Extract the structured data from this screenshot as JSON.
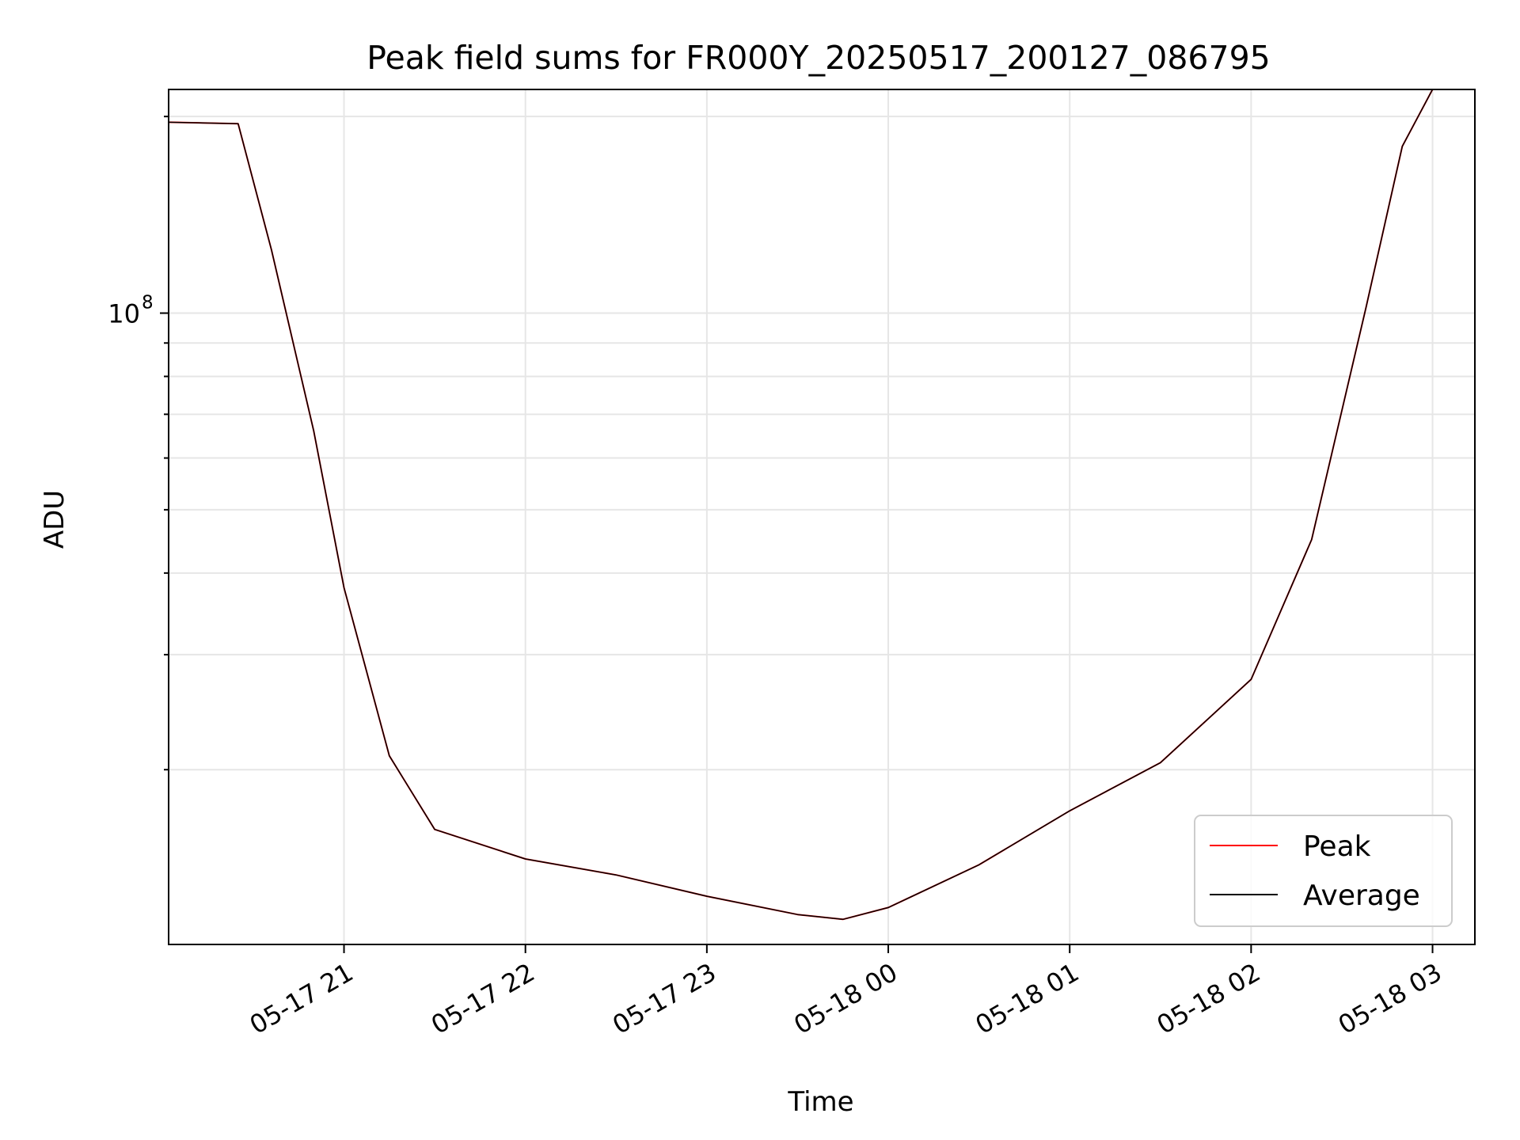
{
  "chart_data": {
    "type": "line",
    "title": "Peak field sums for FR000Y_20250517_200127_086795",
    "xlabel": "Time",
    "ylabel": "ADU",
    "yscale": "log",
    "ylim": [
      10800000,
      220000000
    ],
    "xlim": [
      "2025-05-17 20:02",
      "2025-05-18 03:14"
    ],
    "grid": true,
    "legend_position": "bottom-right",
    "x_ticks": [
      {
        "t": "2025-05-17 21:00",
        "label": "05-17 21"
      },
      {
        "t": "2025-05-17 22:00",
        "label": "05-17 22"
      },
      {
        "t": "2025-05-17 23:00",
        "label": "05-17 23"
      },
      {
        "t": "2025-05-18 00:00",
        "label": "05-18 00"
      },
      {
        "t": "2025-05-18 01:00",
        "label": "05-18 01"
      },
      {
        "t": "2025-05-18 02:00",
        "label": "05-18 02"
      },
      {
        "t": "2025-05-18 03:00",
        "label": "05-18 03"
      }
    ],
    "y_ticks": [
      {
        "value": 100000000,
        "label": "10",
        "exponent": "8"
      }
    ],
    "series": [
      {
        "name": "Peak",
        "color": "#ff0000",
        "x": [
          "2025-05-17 20:02",
          "2025-05-17 20:25",
          "2025-05-17 20:36",
          "2025-05-17 20:50",
          "2025-05-17 21:00",
          "2025-05-17 21:15",
          "2025-05-17 21:30",
          "2025-05-17 22:00",
          "2025-05-17 22:30",
          "2025-05-17 23:00",
          "2025-05-17 23:30",
          "2025-05-17 23:45",
          "2025-05-18 00:00",
          "2025-05-18 00:30",
          "2025-05-18 01:00",
          "2025-05-18 01:30",
          "2025-05-18 02:00",
          "2025-05-18 02:20",
          "2025-05-18 02:38",
          "2025-05-18 02:50",
          "2025-05-18 03:00"
        ],
        "y": [
          196000000,
          195000000,
          125000000,
          66000000,
          38000000,
          21000000,
          16200000,
          14600000,
          13800000,
          12800000,
          12000000,
          11800000,
          12300000,
          14300000,
          17300000,
          20500000,
          27500000,
          45000000,
          102000000,
          180000000,
          220000000
        ]
      },
      {
        "name": "Average",
        "color": "#000000",
        "x": [
          "2025-05-17 20:02",
          "2025-05-17 20:25",
          "2025-05-17 20:36",
          "2025-05-17 20:50",
          "2025-05-17 21:00",
          "2025-05-17 21:15",
          "2025-05-17 21:30",
          "2025-05-17 22:00",
          "2025-05-17 22:30",
          "2025-05-17 23:00",
          "2025-05-17 23:30",
          "2025-05-17 23:45",
          "2025-05-18 00:00",
          "2025-05-18 00:30",
          "2025-05-18 01:00",
          "2025-05-18 01:30",
          "2025-05-18 02:00",
          "2025-05-18 02:20",
          "2025-05-18 02:38",
          "2025-05-18 02:50",
          "2025-05-18 03:00"
        ],
        "y": [
          196000000,
          195000000,
          125000000,
          66000000,
          38000000,
          21000000,
          16200000,
          14600000,
          13800000,
          12800000,
          12000000,
          11800000,
          12300000,
          14300000,
          17300000,
          20500000,
          27500000,
          45000000,
          102000000,
          180000000,
          220000000
        ]
      }
    ]
  }
}
